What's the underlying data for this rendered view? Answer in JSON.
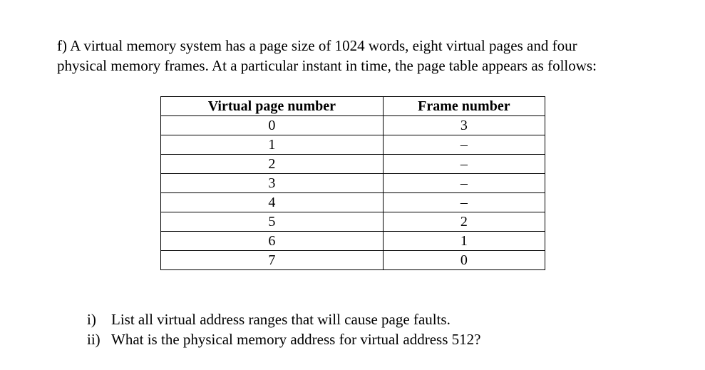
{
  "prompt": {
    "line1": "f) A virtual memory system has a page size of 1024 words, eight virtual pages and four",
    "line2": "physical memory frames. At a particular instant in time, the page table appears as follows:"
  },
  "table": {
    "columns": [
      "Virtual page number",
      "Frame number"
    ],
    "rows": [
      [
        "0",
        "3"
      ],
      [
        "1",
        "–"
      ],
      [
        "2",
        "–"
      ],
      [
        "3",
        "–"
      ],
      [
        "4",
        "–"
      ],
      [
        "5",
        "2"
      ],
      [
        "6",
        "1"
      ],
      [
        "7",
        "0"
      ]
    ],
    "col_widths": [
      "50%",
      "50%"
    ],
    "border_color": "#000000",
    "header_fontweight": "bold",
    "cell_fontsize": 20
  },
  "questions": [
    {
      "num": "i)",
      "text": "List all virtual address ranges that will cause page faults."
    },
    {
      "num": "ii)",
      "text": "What is the physical memory address for virtual address 512?"
    }
  ]
}
